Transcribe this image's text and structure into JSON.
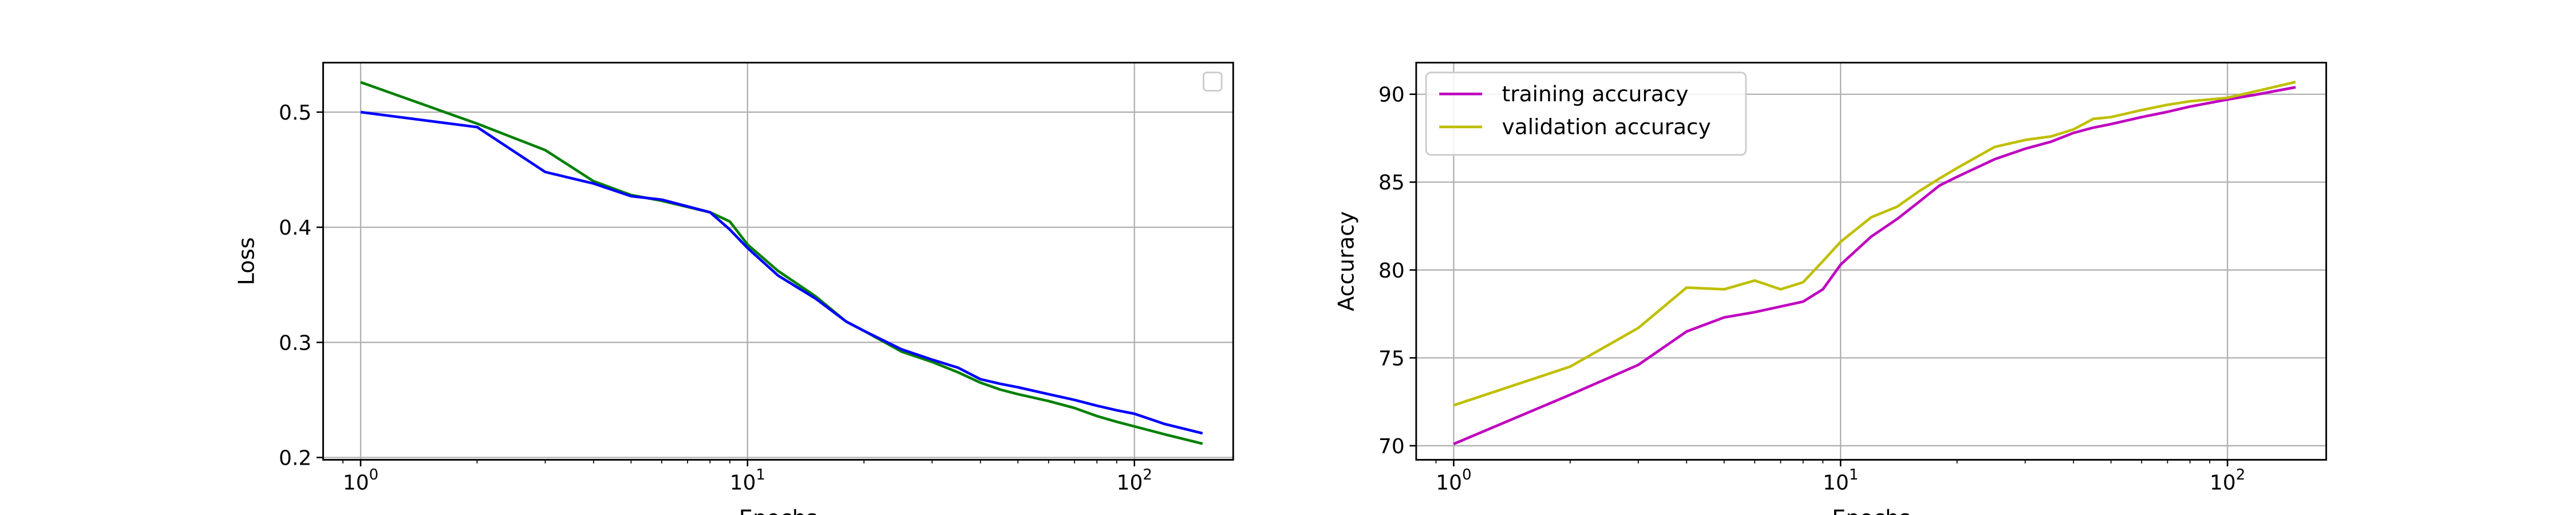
{
  "chart_data": [
    {
      "type": "line",
      "x_scale": "log",
      "xlabel": "Epochs",
      "ylabel": "Loss",
      "xlim": [
        0.8,
        180
      ],
      "ylim": [
        0.198,
        0.543
      ],
      "grid": true,
      "legend": {
        "placement": "upper right",
        "entries": []
      },
      "x_ticks": [
        {
          "value": 1,
          "base": "10",
          "exp": "0"
        },
        {
          "value": 10,
          "base": "10",
          "exp": "1"
        },
        {
          "value": 100,
          "base": "10",
          "exp": "2"
        }
      ],
      "y_ticks": [
        {
          "value": 0.2,
          "label": "0.2"
        },
        {
          "value": 0.3,
          "label": "0.3"
        },
        {
          "value": 0.4,
          "label": "0.4"
        },
        {
          "value": 0.5,
          "label": "0.5"
        }
      ],
      "series": [
        {
          "color": "#008000",
          "points": [
            [
              1,
              0.526
            ],
            [
              2,
              0.49
            ],
            [
              3,
              0.467
            ],
            [
              4,
              0.44
            ],
            [
              5,
              0.428
            ],
            [
              6,
              0.423
            ],
            [
              8,
              0.413
            ],
            [
              9,
              0.405
            ],
            [
              10,
              0.385
            ],
            [
              12,
              0.362
            ],
            [
              15,
              0.34
            ],
            [
              18,
              0.318
            ],
            [
              20,
              0.31
            ],
            [
              25,
              0.292
            ],
            [
              30,
              0.283
            ],
            [
              35,
              0.274
            ],
            [
              40,
              0.265
            ],
            [
              45,
              0.259
            ],
            [
              50,
              0.255
            ],
            [
              60,
              0.249
            ],
            [
              70,
              0.243
            ],
            [
              80,
              0.236
            ],
            [
              90,
              0.231
            ],
            [
              100,
              0.227
            ],
            [
              120,
              0.22
            ],
            [
              150,
              0.212
            ]
          ]
        },
        {
          "color": "#0000ff",
          "points": [
            [
              1,
              0.5
            ],
            [
              2,
              0.487
            ],
            [
              3,
              0.448
            ],
            [
              4,
              0.438
            ],
            [
              5,
              0.427
            ],
            [
              6,
              0.424
            ],
            [
              8,
              0.413
            ],
            [
              9,
              0.398
            ],
            [
              10,
              0.382
            ],
            [
              12,
              0.358
            ],
            [
              15,
              0.338
            ],
            [
              18,
              0.318
            ],
            [
              20,
              0.31
            ],
            [
              25,
              0.294
            ],
            [
              30,
              0.285
            ],
            [
              35,
              0.278
            ],
            [
              40,
              0.268
            ],
            [
              45,
              0.264
            ],
            [
              50,
              0.261
            ],
            [
              60,
              0.255
            ],
            [
              70,
              0.25
            ],
            [
              80,
              0.245
            ],
            [
              90,
              0.241
            ],
            [
              100,
              0.238
            ],
            [
              120,
              0.229
            ],
            [
              150,
              0.221
            ]
          ]
        }
      ]
    },
    {
      "type": "line",
      "x_scale": "log",
      "xlabel": "Epochs",
      "ylabel": "Accuracy",
      "xlim": [
        0.8,
        180
      ],
      "ylim": [
        69.2,
        91.8
      ],
      "grid": true,
      "legend": {
        "placement": "upper left",
        "entries": [
          "training accuracy",
          "validation accuracy"
        ]
      },
      "x_ticks": [
        {
          "value": 1,
          "base": "10",
          "exp": "0"
        },
        {
          "value": 10,
          "base": "10",
          "exp": "1"
        },
        {
          "value": 100,
          "base": "10",
          "exp": "2"
        }
      ],
      "y_ticks": [
        {
          "value": 70,
          "label": "70"
        },
        {
          "value": 75,
          "label": "75"
        },
        {
          "value": 80,
          "label": "80"
        },
        {
          "value": 85,
          "label": "85"
        },
        {
          "value": 90,
          "label": "90"
        }
      ],
      "series": [
        {
          "name": "training accuracy",
          "color": "#bf00bf",
          "points": [
            [
              1,
              70.1
            ],
            [
              2,
              72.9
            ],
            [
              3,
              74.6
            ],
            [
              4,
              76.5
            ],
            [
              5,
              77.3
            ],
            [
              6,
              77.6
            ],
            [
              8,
              78.2
            ],
            [
              9,
              78.9
            ],
            [
              10,
              80.3
            ],
            [
              12,
              81.9
            ],
            [
              14,
              82.9
            ],
            [
              16,
              83.9
            ],
            [
              18,
              84.8
            ],
            [
              20,
              85.3
            ],
            [
              25,
              86.3
            ],
            [
              30,
              86.9
            ],
            [
              35,
              87.3
            ],
            [
              40,
              87.8
            ],
            [
              45,
              88.1
            ],
            [
              50,
              88.3
            ],
            [
              60,
              88.7
            ],
            [
              70,
              89.0
            ],
            [
              80,
              89.3
            ],
            [
              100,
              89.7
            ],
            [
              120,
              90.0
            ],
            [
              150,
              90.4
            ]
          ]
        },
        {
          "name": "validation accuracy",
          "color": "#bfbf00",
          "points": [
            [
              1,
              72.3
            ],
            [
              2,
              74.5
            ],
            [
              3,
              76.7
            ],
            [
              4,
              79.0
            ],
            [
              5,
              78.9
            ],
            [
              6,
              79.4
            ],
            [
              7,
              78.9
            ],
            [
              8,
              79.3
            ],
            [
              9,
              80.5
            ],
            [
              10,
              81.6
            ],
            [
              12,
              83.0
            ],
            [
              14,
              83.6
            ],
            [
              16,
              84.5
            ],
            [
              18,
              85.2
            ],
            [
              20,
              85.8
            ],
            [
              25,
              87.0
            ],
            [
              30,
              87.4
            ],
            [
              35,
              87.6
            ],
            [
              40,
              88.0
            ],
            [
              45,
              88.6
            ],
            [
              50,
              88.7
            ],
            [
              60,
              89.1
            ],
            [
              70,
              89.4
            ],
            [
              80,
              89.6
            ],
            [
              100,
              89.8
            ],
            [
              120,
              90.2
            ],
            [
              150,
              90.7
            ]
          ]
        }
      ]
    }
  ]
}
